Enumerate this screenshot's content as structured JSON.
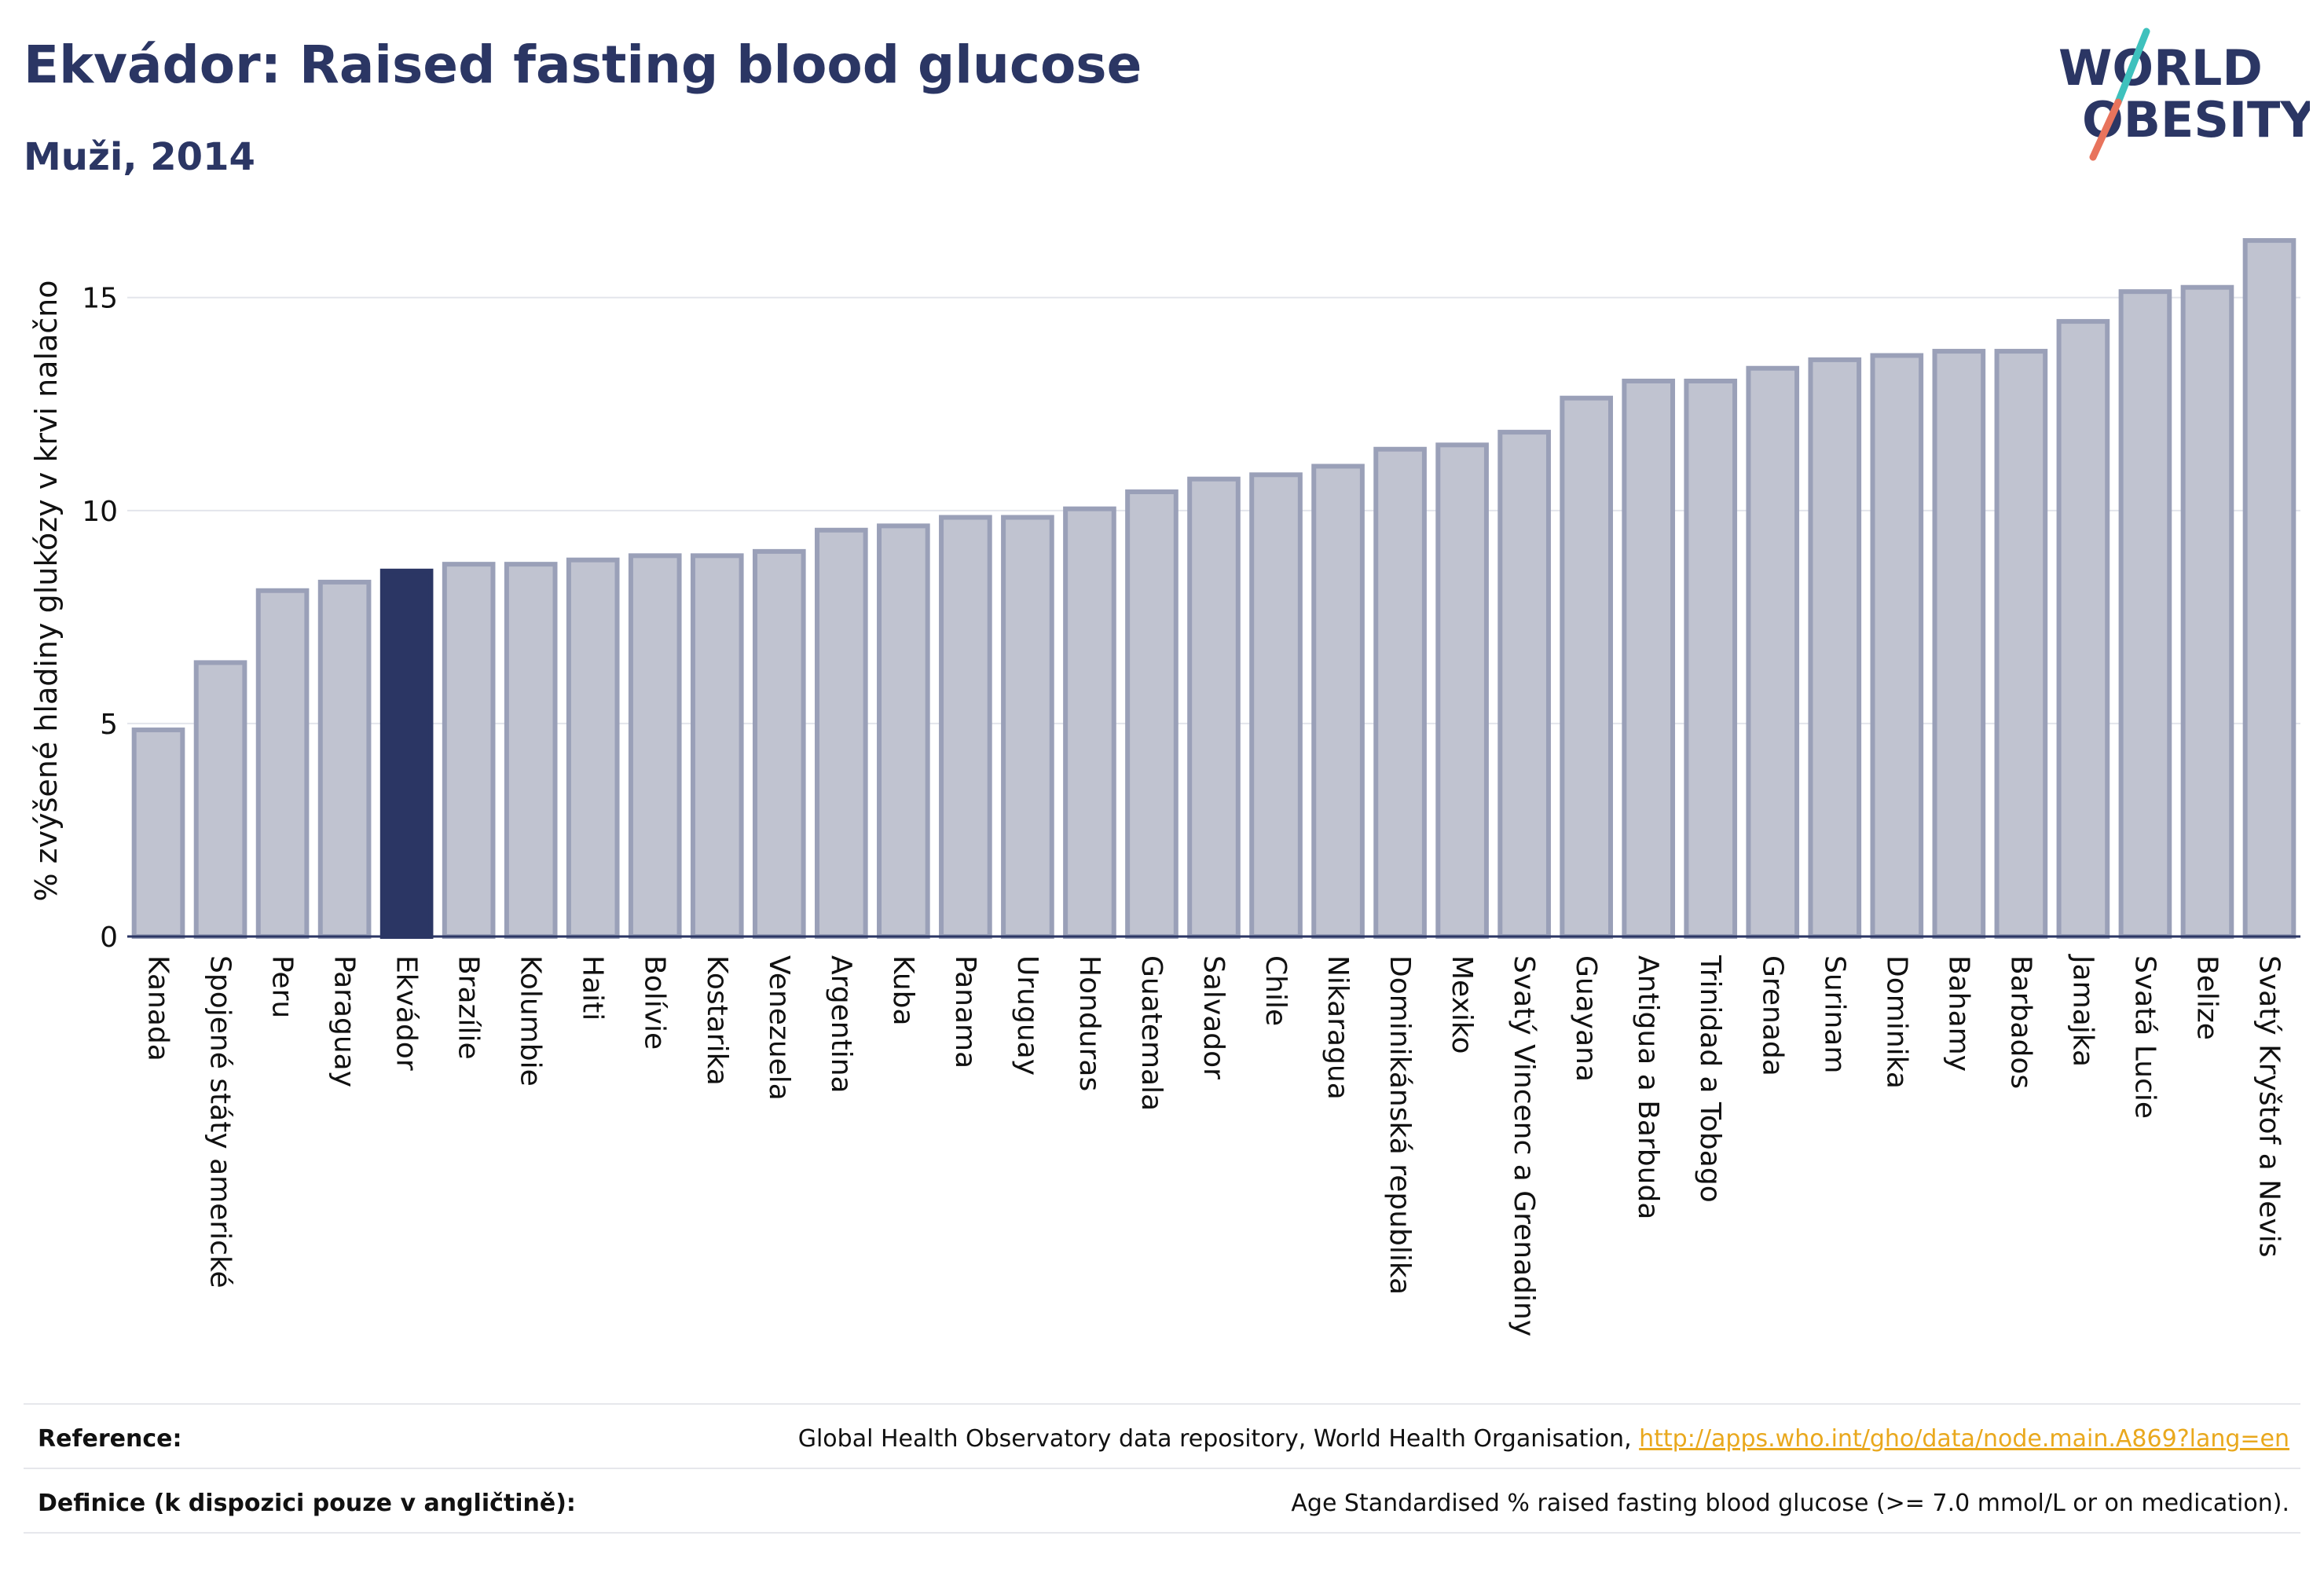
{
  "header": {
    "title": "Ekvádor: Raised fasting blood glucose",
    "subtitle": "Muži, 2014"
  },
  "logo": {
    "line1": "WORLD",
    "line2": "OBESITY"
  },
  "colors": {
    "title": "#2b3664",
    "bar": "#c0c3d0",
    "bar_stroke": "#9aa0b8",
    "highlight_bar": "#2b3664",
    "logo_slash_teal": "#3ec1bd",
    "logo_slash_coral": "#e8735c",
    "link": "#e9a81d"
  },
  "chart_data": {
    "type": "bar",
    "title": "Ekvádor: Raised fasting blood glucose",
    "subtitle": "Muži, 2014",
    "xlabel": "",
    "ylabel": "% zvýšené hladiny glukózy v krvi nalačno",
    "ylim": [
      0,
      16.6
    ],
    "yticks": [
      0,
      5,
      10,
      15
    ],
    "grid": true,
    "highlight": "Ekvádor",
    "categories": [
      "Kanada",
      "Spojené státy americké",
      "Peru",
      "Paraguay",
      "Ekvádor",
      "Brazílie",
      "Kolumbie",
      "Haiti",
      "Bolívie",
      "Kostarika",
      "Venezuela",
      "Argentina",
      "Kuba",
      "Panama",
      "Uruguay",
      "Honduras",
      "Guatemala",
      "Salvador",
      "Chile",
      "Nikaragua",
      "Dominikánská republika",
      "Mexiko",
      "Svatý Vincenc a Grenadiny",
      "Guayana",
      "Antigua a Barbuda",
      "Trinidad a Tobago",
      "Grenada",
      "Surinam",
      "Dominika",
      "Bahamy",
      "Barbados",
      "Jamajka",
      "Svatá Lucie",
      "Belize",
      "Svatý Kryštof a Nevis"
    ],
    "values": [
      4.85,
      6.43,
      8.12,
      8.32,
      8.58,
      8.74,
      8.74,
      8.84,
      8.94,
      8.94,
      9.04,
      9.54,
      9.64,
      9.84,
      9.84,
      10.04,
      10.44,
      10.74,
      10.84,
      11.04,
      11.44,
      11.54,
      11.84,
      12.64,
      13.04,
      13.04,
      13.34,
      13.54,
      13.64,
      13.74,
      13.74,
      14.44,
      15.14,
      15.24,
      16.34
    ]
  },
  "footer": {
    "reference_label": "Reference:",
    "reference_text": "Global Health Observatory data repository, World Health Organisation, ",
    "reference_link": "http://apps.who.int/gho/data/node.main.A869?lang=en",
    "definition_label": "Definice (k dispozici pouze v angličtině):",
    "definition_text": "Age Standardised % raised fasting blood glucose (>= 7.0 mmol/L or on medication)."
  }
}
